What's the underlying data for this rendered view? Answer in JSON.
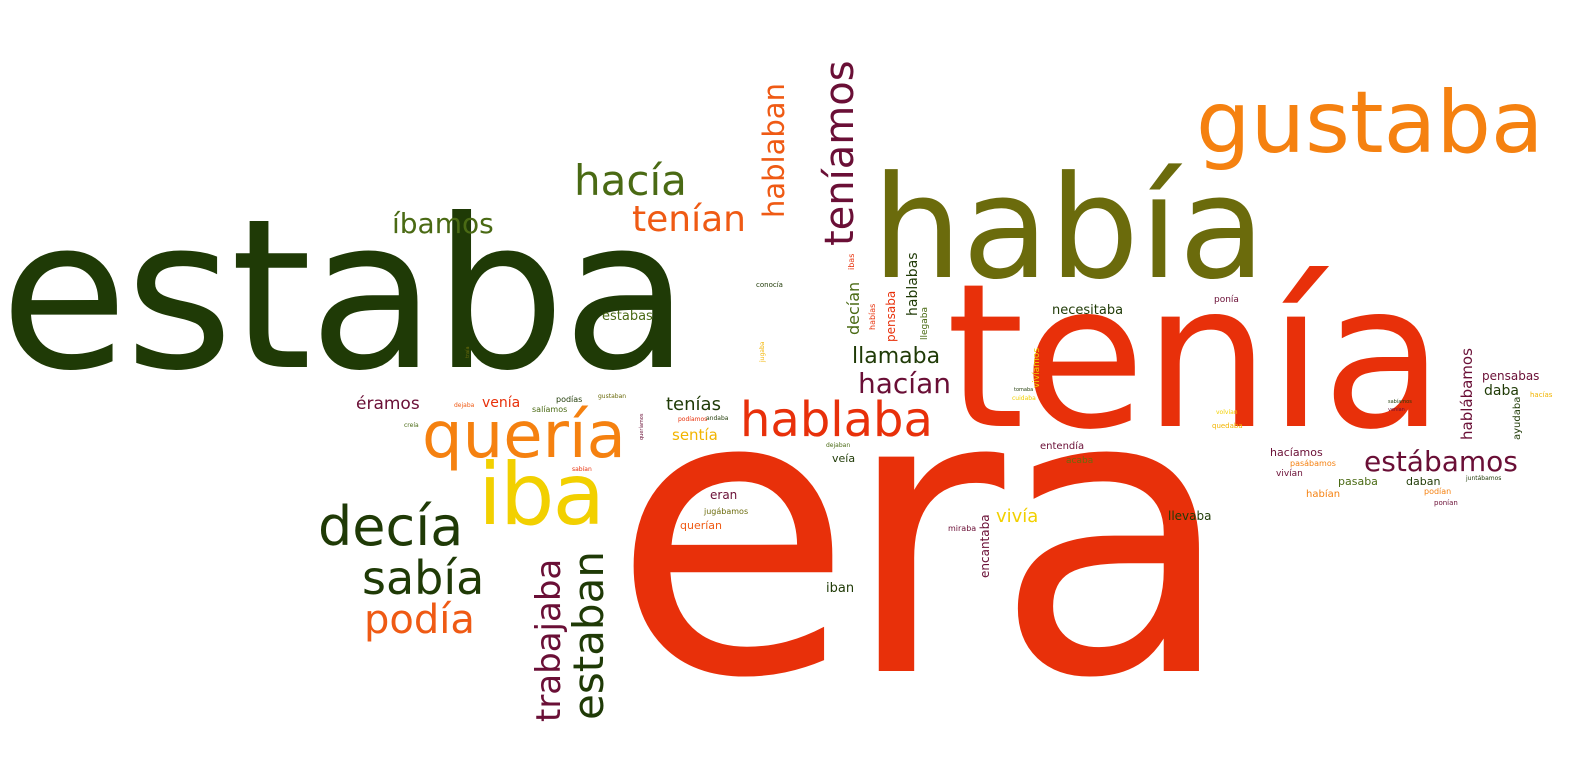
{
  "colors": {
    "dark_green": "#1f3a06",
    "olive": "#6b6b0c",
    "olive_green": "#4a6a14",
    "red": "#e8300a",
    "orange": "#f58110",
    "dark_orange": "#ef5a14",
    "yellow": "#f2d000",
    "maroon": "#6a0f36"
  },
  "words": {
    "estaba": "estaba",
    "era": "era",
    "tenia": "tenía",
    "habia": "había",
    "gustaba": "gustaba",
    "iba": "iba",
    "queria": "quería",
    "hablaba": "hablaba",
    "decia": "decía",
    "teniamos": "teníamos",
    "hacia": "hacía",
    "sabia": "sabía",
    "podia": "podía",
    "estaban": "estaban",
    "trabajaba": "trabajaba",
    "tenian": "tenían",
    "hablaban": "hablaban",
    "ibamos": "íbamos",
    "estabamos": "estábamos",
    "hacian": "hacían",
    "llamaba": "llamaba",
    "tenias": "tenías",
    "hablabamos": "hablábamos",
    "decian": "decían",
    "hablabas": "hablabas",
    "eramos": "éramos",
    "estabas": "estabas",
    "senti": "sentía",
    "vivia": "vivía",
    "pensaba": "pensaba",
    "necesitaba": "necesitaba",
    "venia": "venía",
    "pensabas": "pensabas",
    "llevaba": "llevaba",
    "eran": "eran",
    "iban": "iban",
    "haciamos": "hacíamos",
    "pasaba": "pasaba",
    "daba": "daba",
    "daban": "daban",
    "veia": "veía",
    "encantaba": "encantaba",
    "ayudaba": "ayudaba",
    "querian": "querían",
    "habian": "habían",
    "entendia": "entendía",
    "jugabamos": "jugábamos",
    "acaba": "acaba",
    "vivian": "vivían",
    "pasabamos": "pasábamos",
    "podian": "podían",
    "llegaba": "llegaba",
    "ibas": "ibas",
    "habias": "habías",
    "conocia": "conocía",
    "ponia": "ponía",
    "podias": "podías",
    "gustaban": "gustaban",
    "saliamos": "salíamos",
    "podiamos": "podíamos",
    "dejaba": "dejaba",
    "sabian": "sabían",
    "andaba": "andaba",
    "queriamos": "queríamos",
    "dejaban": "dejaban",
    "mirabas": "miraba",
    "vivíamos": "vivíamos",
    "quedaba": "quedaba",
    "hacias": "hacías",
    "venian": "venían",
    "ponian": "ponían",
    "juntabamos": "juntábamos",
    "sabiamos": "sabíamos",
    "volvian": "volvían",
    "cuidaba": "cuidaba",
    "jugaba": "jugaba",
    "creia": "creía",
    "traia": "traía",
    "tomaba": "tomaba"
  }
}
